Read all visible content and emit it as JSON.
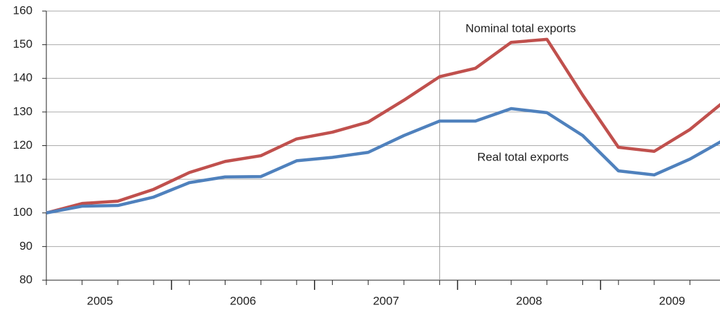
{
  "chart_data": {
    "type": "line",
    "x": [
      0,
      1,
      2,
      3,
      4,
      5,
      6,
      7,
      8,
      9,
      10,
      11,
      12,
      13,
      14,
      15,
      16,
      17,
      18,
      19
    ],
    "xlim": [
      0,
      18.84
    ],
    "xticks": [
      {
        "value": 1.5,
        "label": "2005"
      },
      {
        "value": 5.5,
        "label": "2006"
      },
      {
        "value": 9.5,
        "label": "2007"
      },
      {
        "value": 13.5,
        "label": "2008"
      },
      {
        "value": 17.5,
        "label": "2009"
      }
    ],
    "ylim": [
      80,
      160
    ],
    "yticks": [
      80,
      90,
      100,
      110,
      120,
      130,
      140,
      150,
      160
    ],
    "grid": true,
    "vline": 11,
    "series": [
      {
        "name": "Nominal total exports",
        "color": "#c0504d",
        "values": [
          100,
          102.8,
          103.5,
          107,
          112,
          115.3,
          117,
          122,
          124,
          127,
          133.5,
          140.5,
          143,
          150.7,
          151.6,
          135,
          119.5,
          118.3,
          124.8,
          133.5
        ]
      },
      {
        "name": "Real total exports",
        "color": "#4f81bd",
        "values": [
          100,
          102,
          102.2,
          104.7,
          109,
          110.7,
          110.8,
          115.5,
          116.5,
          118,
          123,
          127.3,
          127.3,
          131,
          129.8,
          123,
          112.5,
          111.3,
          116,
          122
        ]
      }
    ]
  }
}
